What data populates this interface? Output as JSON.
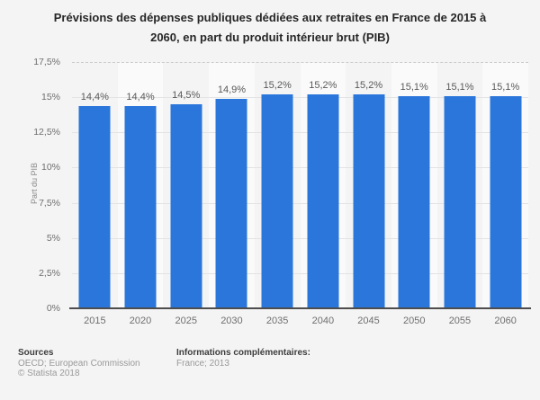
{
  "title": "Prévisions des dépenses publiques dédiées aux retraites en France de 2015 à 2060, en part du produit intérieur brut (PIB)",
  "chart_data": {
    "type": "bar",
    "title": "Prévisions des dépenses publiques dédiées aux retraites en France de 2015 à 2060, en part du produit intérieur brut (PIB)",
    "categories": [
      "2015",
      "2020",
      "2025",
      "2030",
      "2035",
      "2040",
      "2045",
      "2050",
      "2055",
      "2060"
    ],
    "values": [
      14.4,
      14.4,
      14.5,
      14.9,
      15.2,
      15.2,
      15.2,
      15.1,
      15.1,
      15.1
    ],
    "value_labels": [
      "14,4%",
      "14,4%",
      "14,5%",
      "14,9%",
      "15,2%",
      "15,2%",
      "15,2%",
      "15,1%",
      "15,1%",
      "15,1%"
    ],
    "xlabel": "",
    "ylabel": "Part du PIB",
    "ylim": [
      0,
      17.5
    ],
    "yticks": {
      "values": [
        0,
        2.5,
        5,
        7.5,
        10,
        12.5,
        15,
        17.5
      ],
      "labels": [
        "0%",
        "2,5%",
        "5%",
        "7,5%",
        "10%",
        "12,5%",
        "15%",
        "17,5%"
      ]
    },
    "legend": "none",
    "grid": "horizontal",
    "bar_color": "#2a76db",
    "stripe_color": "#fafafa",
    "background_color": "#f4f4f4"
  },
  "footer": {
    "sources_heading": "Sources",
    "sources_line1": "OECD; European Commission",
    "sources_line2": "© Statista 2018",
    "info_heading": "Informations complémentaires:",
    "info_line1": "France; 2013"
  }
}
